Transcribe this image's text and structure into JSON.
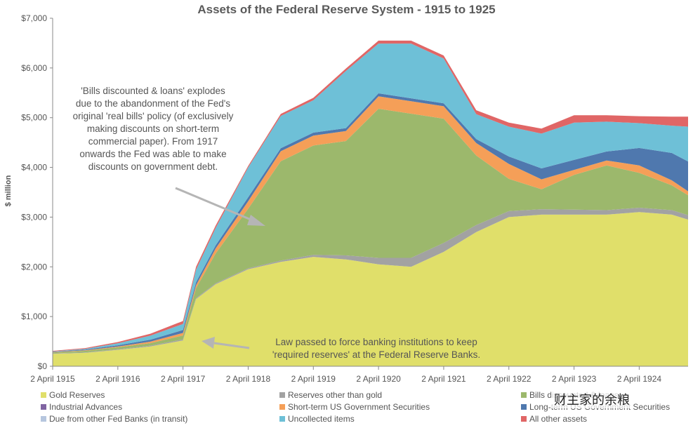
{
  "chart_data": {
    "type": "area",
    "stacked": true,
    "title": "Assets of the Federal Reserve System - 1915 to 1925",
    "xlabel": "",
    "ylabel": "$ million",
    "ylim": [
      0,
      7000
    ],
    "yticks": [
      "$0",
      "$1,000",
      "$2,000",
      "$3,000",
      "$4,000",
      "$5,000",
      "$6,000",
      "$7,000"
    ],
    "xticks": [
      "2 April 1915",
      "2 April 1916",
      "2 April 1917",
      "2 April 1918",
      "2 April 1919",
      "2 April 1920",
      "2 April 1921",
      "2 April 1922",
      "2 April 1923",
      "2 April 1924"
    ],
    "x": [
      1915.0,
      1915.5,
      1916.0,
      1916.5,
      1917.0,
      1917.2,
      1917.5,
      1918.0,
      1918.5,
      1919.0,
      1919.5,
      1920.0,
      1920.5,
      1921.0,
      1921.5,
      1922.0,
      1922.5,
      1923.0,
      1923.5,
      1924.0,
      1924.5,
      1924.75
    ],
    "series": [
      {
        "name": "Gold Reserves",
        "color": "#e0df6a",
        "values": [
          250,
          270,
          330,
          400,
          520,
          1350,
          1650,
          1950,
          2100,
          2200,
          2150,
          2050,
          2000,
          2300,
          2700,
          3000,
          3050,
          3050,
          3050,
          3100,
          3050,
          2950
        ]
      },
      {
        "name": "Reserves other than gold",
        "color": "#a2a2a2",
        "values": [
          10,
          10,
          12,
          15,
          20,
          20,
          20,
          20,
          25,
          40,
          80,
          130,
          180,
          180,
          140,
          120,
          110,
          100,
          90,
          90,
          90,
          90
        ]
      },
      {
        "name": "Bills discounted & loans",
        "color": "#9cb86c",
        "values": [
          20,
          30,
          40,
          50,
          80,
          200,
          600,
          1200,
          2000,
          2200,
          2300,
          3000,
          2900,
          2500,
          1400,
          650,
          400,
          700,
          900,
          700,
          500,
          400
        ]
      },
      {
        "name": "Industrial Advances",
        "color": "#8064a2",
        "values": [
          0,
          0,
          0,
          0,
          0,
          0,
          0,
          0,
          0,
          0,
          0,
          0,
          0,
          0,
          0,
          0,
          0,
          0,
          0,
          0,
          0,
          0
        ]
      },
      {
        "name": "Short-term US Government Securities",
        "color": "#f59f58",
        "values": [
          5,
          10,
          15,
          30,
          50,
          60,
          100,
          150,
          200,
          200,
          200,
          250,
          250,
          250,
          250,
          300,
          200,
          100,
          100,
          150,
          100,
          80
        ]
      },
      {
        "name": "Long-term US Government Securities",
        "color": "#4f78ae",
        "values": [
          10,
          15,
          25,
          40,
          60,
          60,
          60,
          80,
          60,
          60,
          60,
          60,
          60,
          60,
          80,
          150,
          220,
          200,
          180,
          350,
          550,
          600
        ]
      },
      {
        "name": "Due from other Fed Banks (in transit)",
        "color": "#b6c6de",
        "values": [
          0,
          0,
          0,
          0,
          0,
          0,
          0,
          0,
          0,
          0,
          0,
          0,
          0,
          0,
          0,
          0,
          0,
          0,
          0,
          0,
          0,
          0
        ]
      },
      {
        "name": "Uncollected items",
        "color": "#6ec0d7",
        "values": [
          5,
          15,
          40,
          80,
          120,
          250,
          350,
          600,
          650,
          650,
          1150,
          1000,
          1100,
          900,
          500,
          600,
          700,
          750,
          600,
          500,
          550,
          700
        ]
      },
      {
        "name": "All other assets",
        "color": "#e06666",
        "values": [
          10,
          15,
          25,
          40,
          60,
          60,
          50,
          30,
          40,
          50,
          50,
          60,
          60,
          60,
          80,
          80,
          100,
          150,
          130,
          140,
          180,
          200
        ]
      }
    ],
    "annotations": [
      {
        "text_lines": [
          "'Bills discounted & loans' explodes",
          "due to the abandonment of the Fed's",
          "original 'real bills' policy (of exclusively",
          "making discounts on short-term",
          "commercial paper). From 1917",
          "onwards the Fed was able to make",
          "discounts on government debt."
        ],
        "points_to": "Bills discounted & loans, 1918"
      },
      {
        "text_lines": [
          "Law passed to force banking institutions to keep",
          "'required reserves' at the Federal Reserve Banks."
        ],
        "points_to": "Gold Reserves jump, 1917"
      }
    ],
    "legend_position": "bottom"
  },
  "watermark": "财主家的余粮"
}
